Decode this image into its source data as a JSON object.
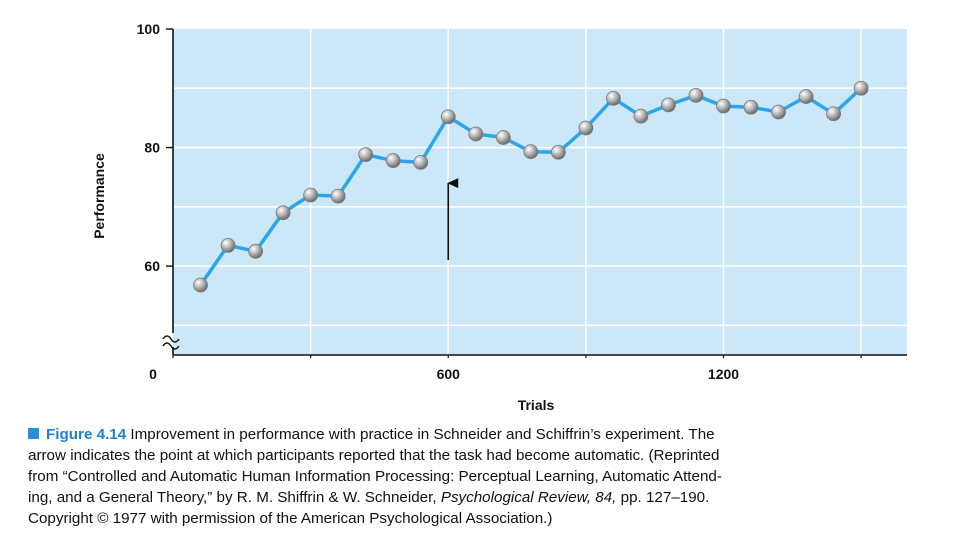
{
  "chart_data": {
    "type": "line",
    "xlabel": "Trials",
    "ylabel": "Performance",
    "xlim": [
      0,
      1600
    ],
    "ylim": [
      45,
      100
    ],
    "x_ticks": [
      0,
      600,
      1200
    ],
    "x_tick_labels": [
      "0",
      "600",
      "1200"
    ],
    "y_ticks": [
      60,
      80,
      100
    ],
    "y_tick_labels": [
      "60",
      "80",
      "100"
    ],
    "y_axis_break": true,
    "grid": true,
    "colors": {
      "plot_background": "#cce8f8",
      "line": "#2aa6ee",
      "marker": "#a9a9a9",
      "grid": "#ffffff"
    },
    "series": [
      {
        "x": [
          60,
          120,
          180,
          240,
          300,
          360,
          420,
          480,
          540,
          600,
          660,
          720,
          780,
          840,
          900,
          960,
          1020,
          1080,
          1140,
          1200,
          1260,
          1320,
          1380,
          1440,
          1500
        ],
        "y": [
          56.8,
          63.5,
          62.5,
          69,
          72,
          71.8,
          78.8,
          77.8,
          77.5,
          85.2,
          82.3,
          81.7,
          79.3,
          79.2,
          83.3,
          88.3,
          85.3,
          87.2,
          88.8,
          87,
          86.8,
          86,
          88.6,
          85.7,
          90
        ]
      }
    ],
    "annotations": [
      {
        "type": "arrow",
        "x": 600,
        "y_from": 61,
        "y_to": 74
      }
    ]
  },
  "caption": {
    "figure_label": "Figure 4.14",
    "line1": "Improvement in performance with practice in Schneider and Schiffrin’s experiment. The",
    "line2": "arrow indicates the point at which participants reported that the task had become automatic. (Reprinted",
    "line3": "from “Controlled and Automatic Human Information Processing: Perceptual Learning, Automatic Attend-",
    "line4_start": "ing, and a General Theory,” by R. M. Shiffrin & W. Schneider,",
    "line4_journal": "Psychological Review, 84,",
    "line4_end": "pp. 127–190.",
    "line5": "Copyright © 1977 with permission of the American Psychological Association.)"
  }
}
